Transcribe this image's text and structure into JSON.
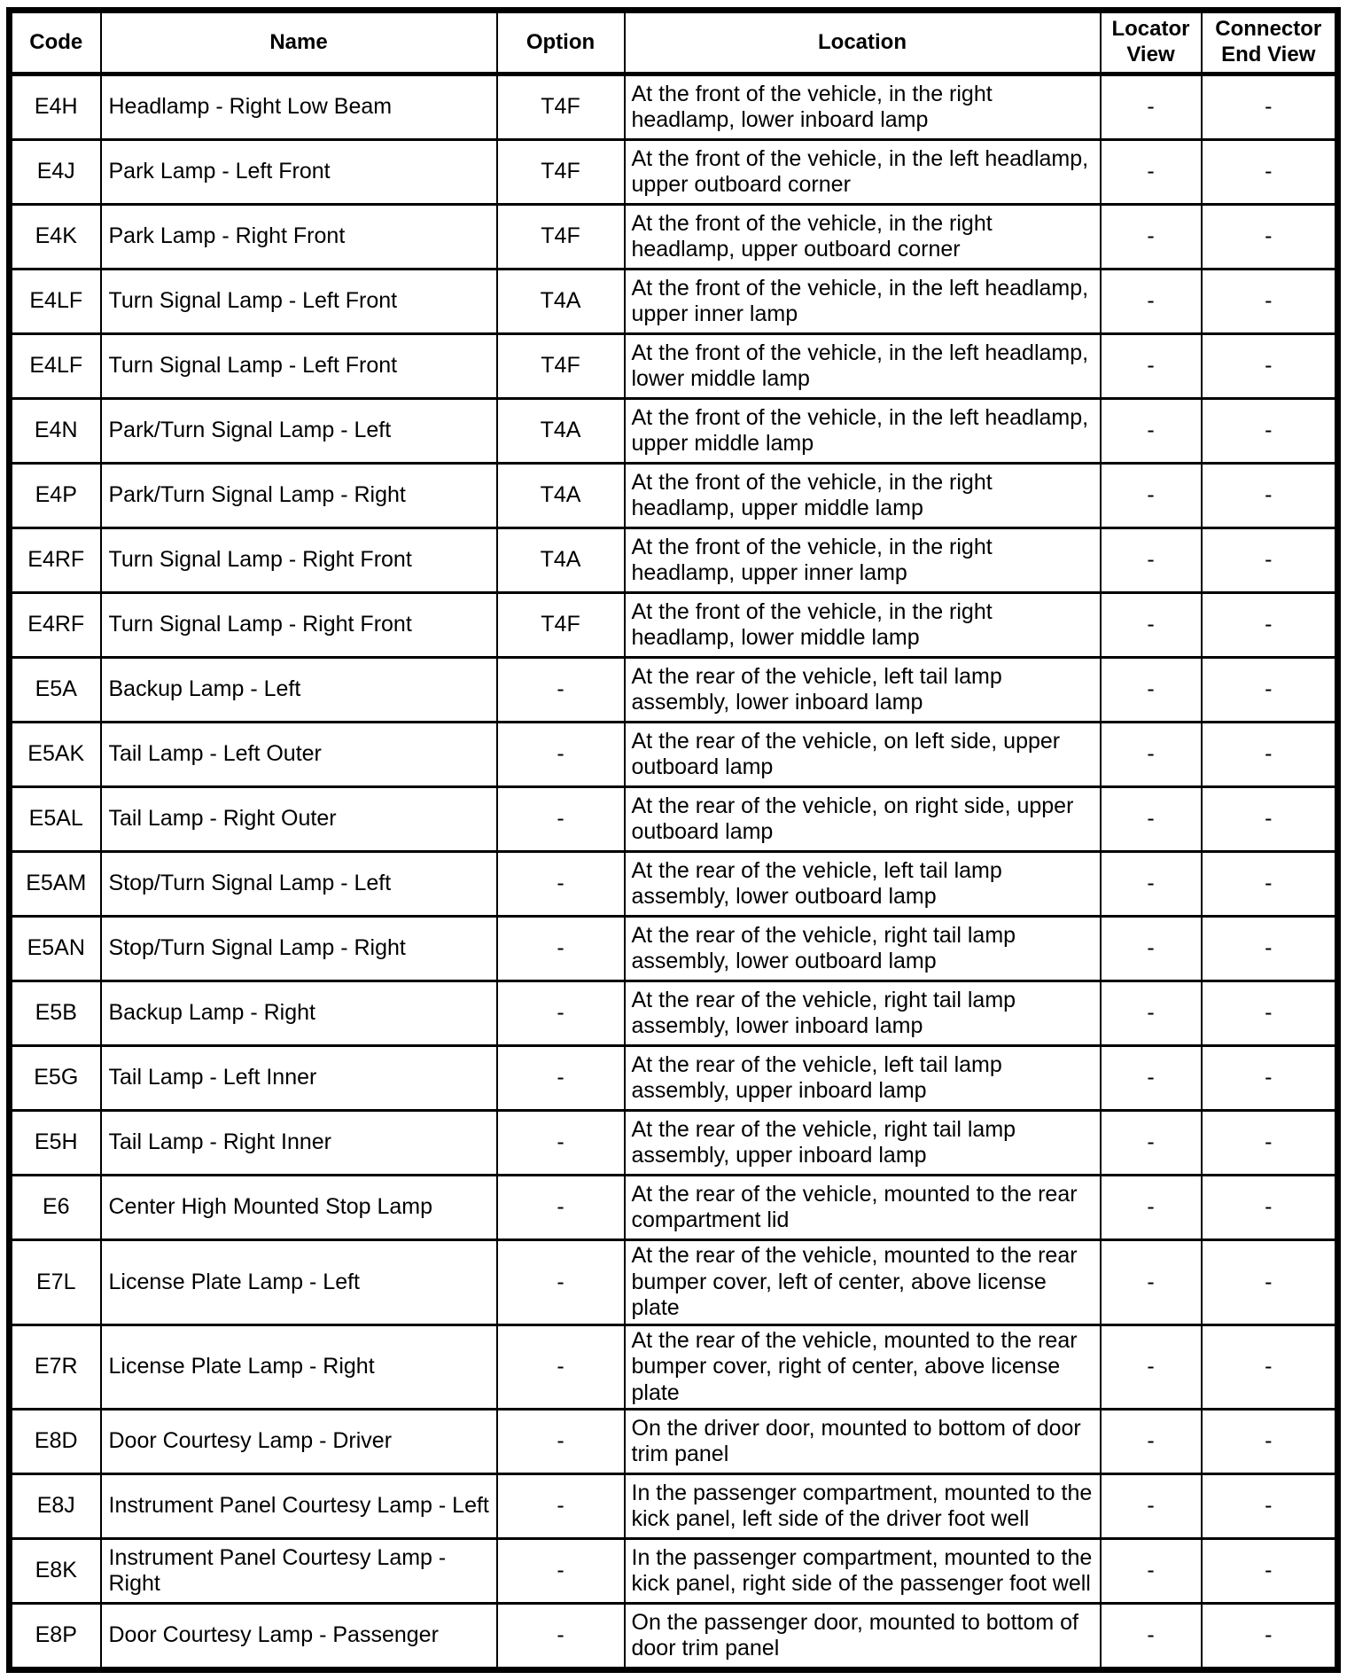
{
  "table": {
    "headers": [
      "Code",
      "Name",
      "Option",
      "Location",
      "Locator View",
      "Connector End View"
    ],
    "rows": [
      {
        "code": "E4H",
        "name": "Headlamp - Right Low Beam",
        "option": "T4F",
        "location": "At the front of the vehicle, in the right headlamp, lower inboard lamp",
        "locator_view": "-",
        "connector_end_view": "-"
      },
      {
        "code": "E4J",
        "name": "Park Lamp - Left Front",
        "option": "T4F",
        "location": "At the front of the vehicle, in the left headlamp, upper outboard corner",
        "locator_view": "-",
        "connector_end_view": "-"
      },
      {
        "code": "E4K",
        "name": "Park Lamp - Right Front",
        "option": "T4F",
        "location": "At the front of the vehicle, in the right headlamp, upper outboard corner",
        "locator_view": "-",
        "connector_end_view": "-"
      },
      {
        "code": "E4LF",
        "name": "Turn Signal Lamp - Left Front",
        "option": "T4A",
        "location": "At the front of the vehicle, in the left headlamp, upper inner lamp",
        "locator_view": "-",
        "connector_end_view": "-"
      },
      {
        "code": "E4LF",
        "name": "Turn Signal Lamp - Left Front",
        "option": "T4F",
        "location": "At the front of the vehicle, in the left headlamp, lower middle lamp",
        "locator_view": "-",
        "connector_end_view": "-"
      },
      {
        "code": "E4N",
        "name": "Park/Turn Signal Lamp - Left",
        "option": "T4A",
        "location": "At the front of the vehicle, in the left headlamp, upper middle lamp",
        "locator_view": "-",
        "connector_end_view": "-"
      },
      {
        "code": "E4P",
        "name": "Park/Turn Signal Lamp - Right",
        "option": "T4A",
        "location": "At the front of the vehicle, in the right headlamp, upper middle lamp",
        "locator_view": "-",
        "connector_end_view": "-"
      },
      {
        "code": "E4RF",
        "name": "Turn Signal Lamp - Right Front",
        "option": "T4A",
        "location": "At the front of the vehicle, in the right headlamp, upper inner lamp",
        "locator_view": "-",
        "connector_end_view": "-"
      },
      {
        "code": "E4RF",
        "name": "Turn Signal Lamp - Right Front",
        "option": "T4F",
        "location": "At the front of the vehicle, in the right headlamp, lower middle lamp",
        "locator_view": "-",
        "connector_end_view": "-"
      },
      {
        "code": "E5A",
        "name": "Backup Lamp - Left",
        "option": "-",
        "location": "At the rear of the vehicle, left tail lamp assembly, lower inboard lamp",
        "locator_view": "-",
        "connector_end_view": "-"
      },
      {
        "code": "E5AK",
        "name": "Tail Lamp - Left Outer",
        "option": "-",
        "location": "At the rear of the vehicle, on left side, upper outboard lamp",
        "locator_view": "-",
        "connector_end_view": "-"
      },
      {
        "code": "E5AL",
        "name": "Tail Lamp - Right Outer",
        "option": "-",
        "location": "At the rear of the vehicle, on right side, upper outboard lamp",
        "locator_view": "-",
        "connector_end_view": "-"
      },
      {
        "code": "E5AM",
        "name": "Stop/Turn Signal Lamp - Left",
        "option": "-",
        "location": "At the rear of the vehicle, left tail lamp assembly, lower outboard lamp",
        "locator_view": "-",
        "connector_end_view": "-"
      },
      {
        "code": "E5AN",
        "name": "Stop/Turn Signal Lamp - Right",
        "option": "-",
        "location": "At the rear of the vehicle, right tail lamp assembly, lower outboard lamp",
        "locator_view": "-",
        "connector_end_view": "-"
      },
      {
        "code": "E5B",
        "name": "Backup Lamp - Right",
        "option": "-",
        "location": "At the rear of the vehicle, right tail lamp assembly, lower inboard lamp",
        "locator_view": "-",
        "connector_end_view": "-"
      },
      {
        "code": "E5G",
        "name": "Tail Lamp - Left Inner",
        "option": "-",
        "location": "At the rear of the vehicle, left tail lamp assembly, upper inboard lamp",
        "locator_view": "-",
        "connector_end_view": "-"
      },
      {
        "code": "E5H",
        "name": "Tail Lamp - Right Inner",
        "option": "-",
        "location": "At the rear of the vehicle, right tail lamp assembly, upper inboard lamp",
        "locator_view": "-",
        "connector_end_view": "-"
      },
      {
        "code": "E6",
        "name": "Center High Mounted Stop Lamp",
        "option": "-",
        "location": "At the rear of the vehicle, mounted to the rear compartment lid",
        "locator_view": "-",
        "connector_end_view": "-"
      },
      {
        "code": "E7L",
        "name": "License Plate Lamp - Left",
        "option": "-",
        "location": "At the rear of the vehicle, mounted to the rear bumper cover, left of center, above license plate",
        "locator_view": "-",
        "connector_end_view": "-"
      },
      {
        "code": "E7R",
        "name": "License Plate Lamp - Right",
        "option": "-",
        "location": "At the rear of the vehicle, mounted to the rear bumper cover, right of center, above license plate",
        "locator_view": "-",
        "connector_end_view": "-"
      },
      {
        "code": "E8D",
        "name": "Door Courtesy Lamp - Driver",
        "option": "-",
        "location": "On the driver door, mounted to bottom of door trim panel",
        "locator_view": "-",
        "connector_end_view": "-"
      },
      {
        "code": "E8J",
        "name": "Instrument Panel Courtesy Lamp - Left",
        "option": "-",
        "location": "In the passenger compartment, mounted to the kick panel, left side of the driver foot well",
        "locator_view": "-",
        "connector_end_view": "-"
      },
      {
        "code": "E8K",
        "name": "Instrument Panel Courtesy Lamp - Right",
        "option": "-",
        "location": "In the passenger compartment, mounted to the kick panel, right side of the passenger foot well",
        "locator_view": "-",
        "connector_end_view": "-"
      },
      {
        "code": "E8P",
        "name": "Door Courtesy Lamp - Passenger",
        "option": "-",
        "location": "On the passenger door, mounted to bottom of door trim panel",
        "locator_view": "-",
        "connector_end_view": "-"
      }
    ]
  }
}
